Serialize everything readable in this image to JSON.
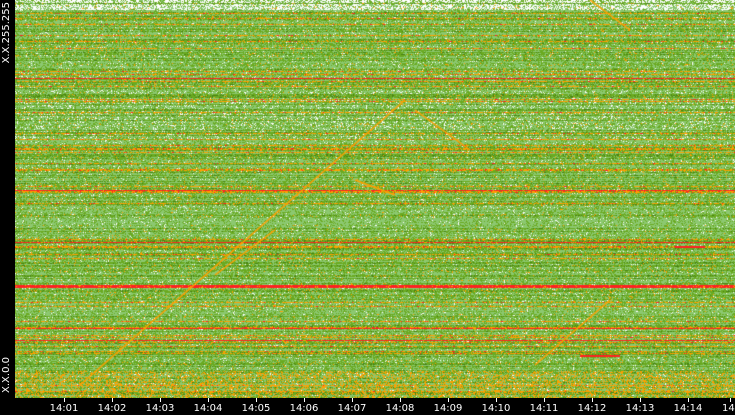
{
  "chart_data": {
    "type": "heatmap",
    "ylabel_top": "X.X.255.255",
    "ylabel_bottom": "X.X.0.0",
    "x_ticks": [
      "14:01",
      "14:02",
      "14:03",
      "14:04",
      "14:05",
      "14:06",
      "14:07",
      "14:08",
      "14:09",
      "14:10",
      "14:11",
      "14:12",
      "14:13",
      "14:14",
      "14"
    ],
    "colors": {
      "background": "#000000",
      "low": "#8cc870",
      "mid": "#6aaa20",
      "high": "#ffa000",
      "peak": "#ff2020",
      "empty": "#ffffff"
    }
  }
}
